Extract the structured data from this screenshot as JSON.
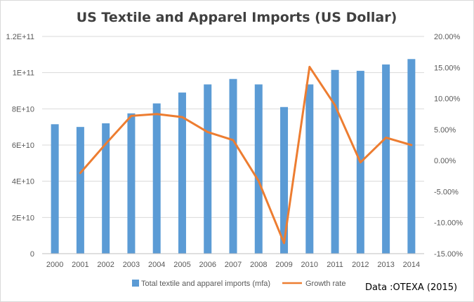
{
  "chart_data": {
    "type": "bar",
    "title": "US Textile and Apparel Imports (US Dollar)",
    "categories": [
      "2000",
      "2001",
      "2002",
      "2003",
      "2004",
      "2005",
      "2006",
      "2007",
      "2008",
      "2009",
      "2010",
      "2011",
      "2012",
      "2013",
      "2014"
    ],
    "series": [
      {
        "name": "Total textile and apparel imports (mfa)",
        "type": "bar",
        "axis": "left",
        "color": "#5b9bd5",
        "values": [
          71500000000,
          70000000000,
          72000000000,
          77500000000,
          83000000000,
          89000000000,
          93500000000,
          96500000000,
          93500000000,
          81000000000,
          93500000000,
          101500000000,
          101000000000,
          104500000000,
          107500000000
        ]
      },
      {
        "name": "Growth rate",
        "type": "line",
        "axis": "right",
        "color": "#ed7d31",
        "values": [
          null,
          -2.0,
          2.7,
          7.2,
          7.5,
          7.0,
          4.6,
          3.3,
          -3.3,
          -13.3,
          15.1,
          8.9,
          -0.3,
          3.7,
          2.5
        ]
      }
    ],
    "y_left": {
      "min": 0,
      "max": 120000000000,
      "ticks": [
        0,
        20000000000,
        40000000000,
        60000000000,
        80000000000,
        100000000000,
        120000000000
      ],
      "tick_labels": [
        "0",
        "2E+10",
        "4E+10",
        "6E+10",
        "8E+10",
        "1E+11",
        "1.2E+11"
      ]
    },
    "y_right": {
      "min": -15,
      "max": 20,
      "ticks": [
        -15,
        -10,
        -5,
        0,
        5,
        10,
        15,
        20
      ],
      "tick_labels": [
        "-15.00%",
        "-10.00%",
        "-5.00%",
        "0.00%",
        "5.00%",
        "10.00%",
        "15.00%",
        "20.00%"
      ]
    },
    "grid": true,
    "legend_position": "bottom",
    "source_note": "Data :OTEXA (2015)"
  }
}
